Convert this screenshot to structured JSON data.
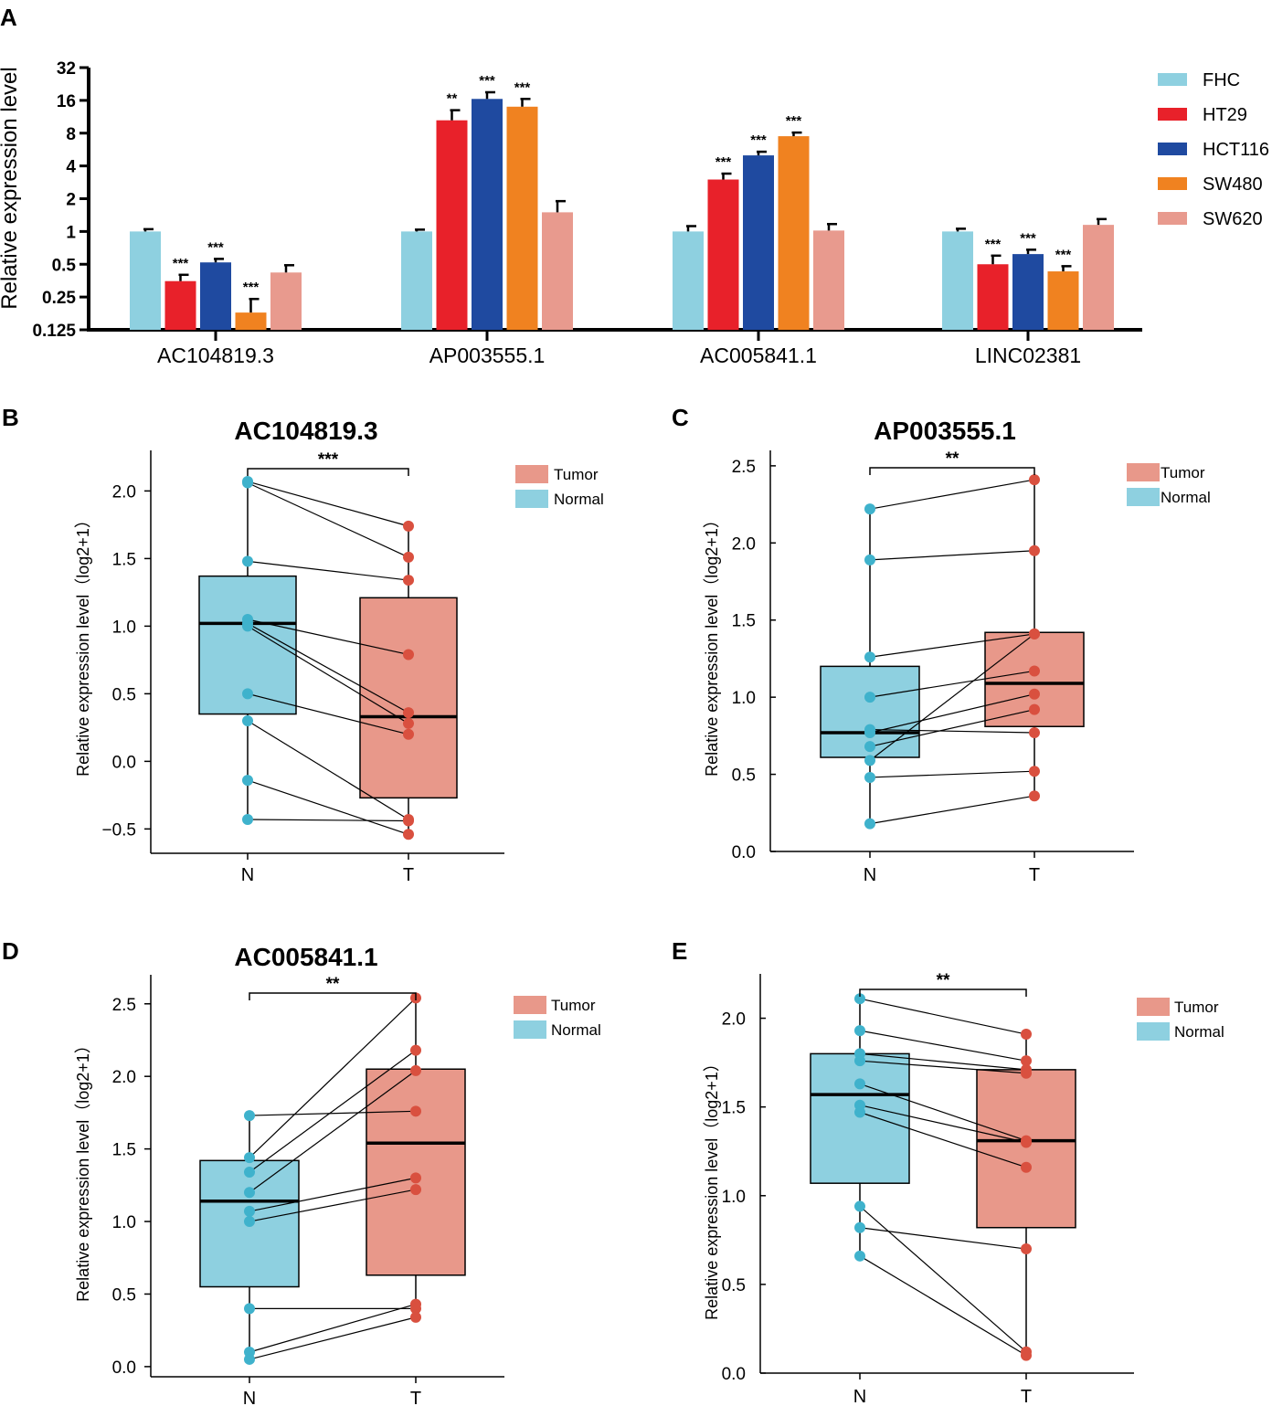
{
  "figure": {
    "panel_letters": [
      "A",
      "B",
      "C",
      "D",
      "E"
    ]
  },
  "chart_data": [
    {
      "panel": "A",
      "type": "bar",
      "title": "",
      "ylabel": "Relative expression level",
      "yscale": "log2",
      "ylim": [
        0.125,
        32
      ],
      "yticks": [
        "32",
        "16",
        "8",
        "4",
        "2",
        "1",
        "0.5",
        "0.25",
        "0.125"
      ],
      "yticks_values": [
        32,
        16,
        8,
        4,
        2,
        1,
        0.5,
        0.25,
        0.125
      ],
      "categories": [
        "AC104819.3",
        "AP003555.1",
        "AC005841.1",
        "LINC02381"
      ],
      "series": [
        {
          "name": "FHC",
          "color": "#8ed0e0",
          "values": [
            1.0,
            1.0,
            1.0,
            1.0
          ],
          "errors": [
            0.05,
            0.04,
            0.12,
            0.06
          ],
          "stars": [
            "",
            "",
            "",
            ""
          ]
        },
        {
          "name": "HT29",
          "color": "#e8212a",
          "values": [
            0.35,
            10.5,
            3.0,
            0.5
          ],
          "errors": [
            0.05,
            2.5,
            0.4,
            0.1
          ],
          "stars": [
            "***",
            "**",
            "***",
            "***"
          ]
        },
        {
          "name": "HCT116",
          "color": "#1f4aa0",
          "values": [
            0.52,
            16.5,
            5.0,
            0.62
          ],
          "errors": [
            0.04,
            2.5,
            0.4,
            0.06
          ],
          "stars": [
            "***",
            "***",
            "***",
            "***"
          ]
        },
        {
          "name": "SW480",
          "color": "#f08220",
          "values": [
            0.18,
            14.0,
            7.5,
            0.43
          ],
          "errors": [
            0.06,
            2.5,
            0.6,
            0.05
          ],
          "stars": [
            "***",
            "***",
            "***",
            "***"
          ]
        },
        {
          "name": "SW620",
          "color": "#e89a8e",
          "values": [
            0.42,
            1.5,
            1.02,
            1.15
          ],
          "errors": [
            0.07,
            0.4,
            0.15,
            0.15
          ],
          "stars": [
            "",
            "",
            "",
            ""
          ]
        }
      ]
    },
    {
      "panel": "B",
      "type": "box",
      "title": "AC104819.3",
      "ylabel": "Relative expression level（log2+1）",
      "categories": [
        "N",
        "T"
      ],
      "ylim": [
        -0.68,
        2.3
      ],
      "yticks": [
        -0.5,
        0.0,
        0.5,
        1.0,
        1.5,
        2.0
      ],
      "ytick_labels": [
        "−0.5",
        "0.0",
        "0.5",
        "1.0",
        "1.5",
        "2.0"
      ],
      "significance": "***",
      "legend": [
        "Tumor",
        "Normal"
      ],
      "boxes": [
        {
          "name": "Normal",
          "q1": 0.35,
          "median": 1.02,
          "q3": 1.37,
          "min": -0.43,
          "max": 2.07
        },
        {
          "name": "Tumor",
          "q1": -0.27,
          "median": 0.33,
          "q3": 1.21,
          "min": -0.54,
          "max": 1.74
        }
      ],
      "pairs": [
        [
          2.07,
          1.74
        ],
        [
          2.06,
          1.51
        ],
        [
          1.48,
          1.34
        ],
        [
          1.05,
          0.79
        ],
        [
          1.02,
          0.36
        ],
        [
          1.0,
          0.28
        ],
        [
          0.5,
          0.2
        ],
        [
          0.3,
          -0.43
        ],
        [
          -0.14,
          -0.54
        ],
        [
          -0.43,
          -0.44
        ]
      ]
    },
    {
      "panel": "C",
      "type": "box",
      "title": "AP003555.1",
      "ylabel": "Relative expression level（log2+1）",
      "categories": [
        "N",
        "T"
      ],
      "ylim": [
        0.0,
        2.6
      ],
      "yticks": [
        0.0,
        0.5,
        1.0,
        1.5,
        2.0,
        2.5
      ],
      "ytick_labels": [
        "0.0",
        "0.5",
        "1.0",
        "1.5",
        "2.0",
        "2.5"
      ],
      "significance": "**",
      "legend": [
        "Tumor",
        "Normal"
      ],
      "boxes": [
        {
          "name": "Normal",
          "q1": 0.61,
          "median": 0.77,
          "q3": 1.2,
          "min": 0.18,
          "max": 2.22
        },
        {
          "name": "Tumor",
          "q1": 0.81,
          "median": 1.09,
          "q3": 1.42,
          "min": 0.36,
          "max": 2.41
        }
      ],
      "pairs": [
        [
          2.22,
          2.41
        ],
        [
          1.89,
          1.95
        ],
        [
          1.26,
          1.41
        ],
        [
          1.0,
          1.17
        ],
        [
          0.79,
          0.77
        ],
        [
          0.77,
          1.02
        ],
        [
          0.68,
          0.92
        ],
        [
          0.59,
          1.41
        ],
        [
          0.48,
          0.52
        ],
        [
          0.18,
          0.36
        ]
      ]
    },
    {
      "panel": "D",
      "type": "box",
      "title": "AC005841.1",
      "ylabel": "Relative expression level（log2+1）",
      "categories": [
        "N",
        "T"
      ],
      "ylim": [
        -0.07,
        2.7
      ],
      "yticks": [
        0.0,
        0.5,
        1.0,
        1.5,
        2.0,
        2.5
      ],
      "ytick_labels": [
        "0.0",
        "0.5",
        "1.0",
        "1.5",
        "2.0",
        "2.5"
      ],
      "significance": "**",
      "legend": [
        "Tumor",
        "Normal"
      ],
      "boxes": [
        {
          "name": "Normal",
          "q1": 0.55,
          "median": 1.14,
          "q3": 1.42,
          "min": 0.05,
          "max": 1.73
        },
        {
          "name": "Tumor",
          "q1": 0.63,
          "median": 1.54,
          "q3": 2.05,
          "min": 0.34,
          "max": 2.54
        }
      ],
      "pairs": [
        [
          1.73,
          1.76
        ],
        [
          1.44,
          2.54
        ],
        [
          1.34,
          2.18
        ],
        [
          1.2,
          2.04
        ],
        [
          1.07,
          1.3
        ],
        [
          1.0,
          1.22
        ],
        [
          0.4,
          0.4
        ],
        [
          0.1,
          0.43
        ],
        [
          0.05,
          0.34
        ]
      ]
    },
    {
      "panel": "E",
      "type": "box",
      "title": "",
      "ylabel": "Relative expression level（log2+1）",
      "categories": [
        "N",
        "T"
      ],
      "ylim": [
        0.0,
        2.25
      ],
      "yticks": [
        0.0,
        0.5,
        1.0,
        1.5,
        2.0
      ],
      "ytick_labels": [
        "0.0",
        "0.5",
        "1.0",
        "1.5",
        "2.0"
      ],
      "significance": "**",
      "legend": [
        "Tumor",
        "Normal"
      ],
      "boxes": [
        {
          "name": "Normal",
          "q1": 1.07,
          "median": 1.57,
          "q3": 1.8,
          "min": 0.66,
          "max": 2.11
        },
        {
          "name": "Tumor",
          "q1": 0.82,
          "median": 1.31,
          "q3": 1.71,
          "min": 0.1,
          "max": 1.91
        }
      ],
      "pairs": [
        [
          2.11,
          1.91
        ],
        [
          1.93,
          1.76
        ],
        [
          1.8,
          1.71
        ],
        [
          1.76,
          1.69
        ],
        [
          1.63,
          1.31
        ],
        [
          1.51,
          1.3
        ],
        [
          1.47,
          1.16
        ],
        [
          0.94,
          0.12
        ],
        [
          0.82,
          0.7
        ],
        [
          0.66,
          0.1
        ]
      ]
    }
  ]
}
